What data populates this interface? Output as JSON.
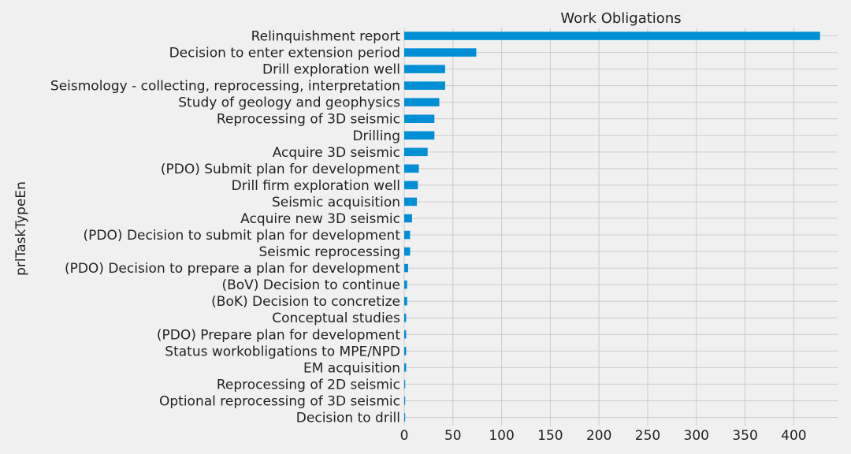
{
  "chart_data": {
    "type": "bar",
    "orientation": "horizontal",
    "title": "Work Obligations",
    "xlabel": "",
    "ylabel": "prlTaskTypeEn",
    "xlim": [
      0,
      445
    ],
    "xticks": [
      0,
      50,
      100,
      150,
      200,
      250,
      300,
      350,
      400
    ],
    "grid": true,
    "bar_color": "#008fd5",
    "background": "#f0f0f0",
    "categories": [
      "Relinquishment report",
      "Decision to enter extension period",
      "Drill exploration well",
      "Seismology - collecting, reprocessing, interpretation",
      "Study of geology and geophysics",
      "Reprocessing of 3D seismic",
      "Drilling",
      "Acquire 3D seismic",
      "(PDO) Submit plan for development",
      "Drill firm exploration well",
      "Seismic acquisition",
      "Acquire new 3D seismic",
      "(PDO) Decision to submit plan for development",
      "Seismic reprocessing",
      "(PDO) Decision to prepare a plan for development",
      "(BoV) Decision to continue",
      "(BoK) Decision to concretize",
      "Conceptual studies",
      "(PDO) Prepare plan for development",
      "Status workobligations to MPE/NPD",
      "EM acquisition",
      "Reprocessing of 2D seismic",
      "Optional reprocessing of 3D seismic",
      "Decision to drill"
    ],
    "values": [
      427,
      74,
      42,
      42,
      36,
      31,
      31,
      24,
      15,
      14,
      13,
      8,
      6,
      6,
      4,
      3,
      3,
      2,
      2,
      2,
      2,
      1,
      1,
      1
    ]
  }
}
